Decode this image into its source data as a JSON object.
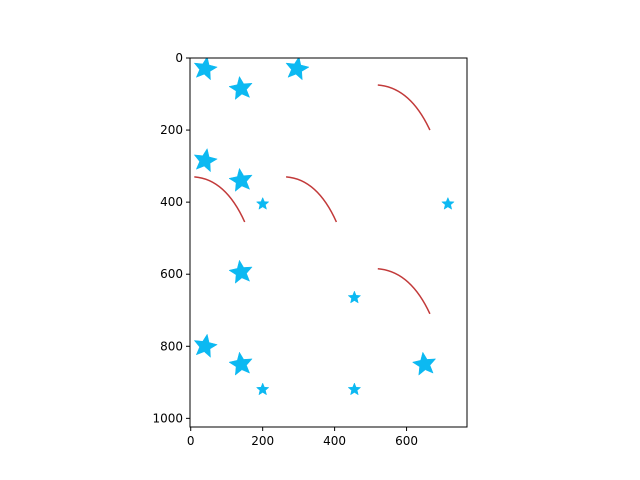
{
  "colors": {
    "star": "#0cb9f2",
    "curve": "#c23a3a",
    "axis": "#000000",
    "background": "#ffffff"
  },
  "icons": {
    "marker": "star-icon"
  },
  "chart_data": {
    "type": "scatter",
    "title": "",
    "xlabel": "",
    "ylabel": "",
    "xlim": [
      -2,
      768
    ],
    "ylim": [
      1024,
      0
    ],
    "y_inverted": true,
    "grid": false,
    "legend": "none",
    "xticks": [
      {
        "value": 0,
        "label": "0"
      },
      {
        "value": 200,
        "label": "200"
      },
      {
        "value": 400,
        "label": "400"
      },
      {
        "value": 600,
        "label": "600"
      }
    ],
    "yticks": [
      {
        "value": 0,
        "label": "0"
      },
      {
        "value": 200,
        "label": "200"
      },
      {
        "value": 400,
        "label": "400"
      },
      {
        "value": 600,
        "label": "600"
      },
      {
        "value": 800,
        "label": "800"
      },
      {
        "value": 1000,
        "label": "1000"
      }
    ],
    "stars": [
      {
        "x": 40,
        "y": 30,
        "size": 34,
        "rotation": 10
      },
      {
        "x": 295,
        "y": 30,
        "size": 34,
        "rotation": 10
      },
      {
        "x": 140,
        "y": 85,
        "size": 34,
        "rotation": -8
      },
      {
        "x": 40,
        "y": 285,
        "size": 34,
        "rotation": 10
      },
      {
        "x": 140,
        "y": 340,
        "size": 34,
        "rotation": -8
      },
      {
        "x": 200,
        "y": 405,
        "size": 18,
        "rotation": 0
      },
      {
        "x": 715,
        "y": 405,
        "size": 18,
        "rotation": 0
      },
      {
        "x": 140,
        "y": 595,
        "size": 34,
        "rotation": -8
      },
      {
        "x": 455,
        "y": 665,
        "size": 18,
        "rotation": 0
      },
      {
        "x": 40,
        "y": 800,
        "size": 34,
        "rotation": 10
      },
      {
        "x": 140,
        "y": 850,
        "size": 34,
        "rotation": -8
      },
      {
        "x": 650,
        "y": 850,
        "size": 34,
        "rotation": -8
      },
      {
        "x": 200,
        "y": 920,
        "size": 18,
        "rotation": 0
      },
      {
        "x": 455,
        "y": 920,
        "size": 18,
        "rotation": 0
      }
    ],
    "curves": [
      {
        "x0": 520,
        "y0": 75,
        "x1": 665,
        "y1": 200
      },
      {
        "x0": 10,
        "y0": 330,
        "x1": 150,
        "y1": 455
      },
      {
        "x0": 265,
        "y0": 330,
        "x1": 405,
        "y1": 455
      },
      {
        "x0": 520,
        "y0": 585,
        "x1": 665,
        "y1": 710
      }
    ]
  }
}
